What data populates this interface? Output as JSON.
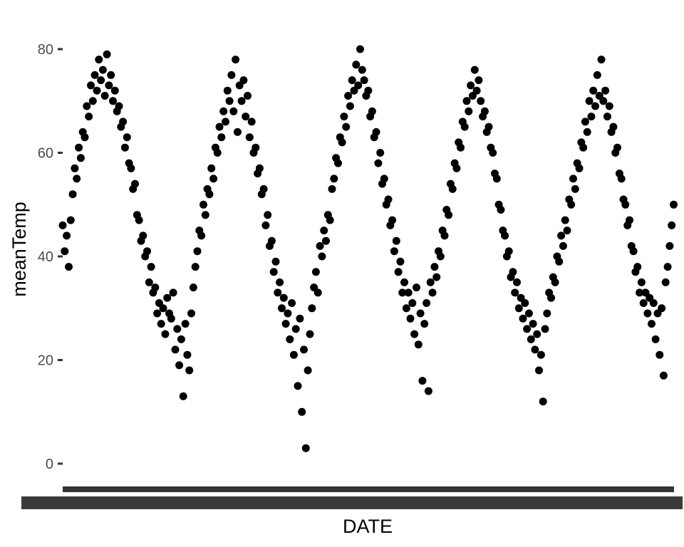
{
  "chart_data": {
    "type": "scatter",
    "title": "",
    "xlabel": "DATE",
    "ylabel": "meanTemp",
    "ylim": [
      -4,
      86
    ],
    "y_ticks": [
      0,
      20,
      40,
      60,
      80
    ],
    "x_tick_labels": "overplotted (illegible date labels)",
    "grid": false,
    "point_color": "#000000",
    "x_range_days": [
      0,
      1825
    ],
    "series": [
      {
        "points": [
          [
            0,
            46
          ],
          [
            6,
            41
          ],
          [
            12,
            44
          ],
          [
            18,
            38
          ],
          [
            24,
            47
          ],
          [
            30,
            52
          ],
          [
            36,
            57
          ],
          [
            42,
            55
          ],
          [
            48,
            61
          ],
          [
            54,
            59
          ],
          [
            60,
            64
          ],
          [
            66,
            63
          ],
          [
            72,
            69
          ],
          [
            78,
            67
          ],
          [
            84,
            73
          ],
          [
            90,
            70
          ],
          [
            96,
            75
          ],
          [
            102,
            72
          ],
          [
            108,
            78
          ],
          [
            114,
            74
          ],
          [
            120,
            76
          ],
          [
            126,
            71
          ],
          [
            132,
            79
          ],
          [
            138,
            73
          ],
          [
            144,
            75
          ],
          [
            150,
            70
          ],
          [
            156,
            72
          ],
          [
            162,
            68
          ],
          [
            168,
            69
          ],
          [
            174,
            65
          ],
          [
            180,
            66
          ],
          [
            186,
            61
          ],
          [
            192,
            63
          ],
          [
            198,
            58
          ],
          [
            204,
            57
          ],
          [
            210,
            53
          ],
          [
            216,
            54
          ],
          [
            222,
            48
          ],
          [
            228,
            47
          ],
          [
            234,
            43
          ],
          [
            240,
            44
          ],
          [
            246,
            40
          ],
          [
            252,
            41
          ],
          [
            258,
            35
          ],
          [
            264,
            38
          ],
          [
            270,
            33
          ],
          [
            276,
            34
          ],
          [
            282,
            29
          ],
          [
            288,
            31
          ],
          [
            294,
            27
          ],
          [
            300,
            30
          ],
          [
            306,
            25
          ],
          [
            312,
            32
          ],
          [
            318,
            29
          ],
          [
            324,
            28
          ],
          [
            330,
            33
          ],
          [
            336,
            22
          ],
          [
            342,
            26
          ],
          [
            348,
            19
          ],
          [
            354,
            24
          ],
          [
            360,
            13
          ],
          [
            366,
            27
          ],
          [
            372,
            21
          ],
          [
            378,
            18
          ],
          [
            384,
            29
          ],
          [
            390,
            34
          ],
          [
            396,
            38
          ],
          [
            402,
            41
          ],
          [
            408,
            45
          ],
          [
            414,
            44
          ],
          [
            420,
            50
          ],
          [
            426,
            48
          ],
          [
            432,
            53
          ],
          [
            438,
            52
          ],
          [
            444,
            57
          ],
          [
            450,
            55
          ],
          [
            456,
            61
          ],
          [
            462,
            60
          ],
          [
            468,
            65
          ],
          [
            474,
            63
          ],
          [
            480,
            68
          ],
          [
            486,
            66
          ],
          [
            492,
            72
          ],
          [
            498,
            70
          ],
          [
            504,
            75
          ],
          [
            510,
            68
          ],
          [
            516,
            78
          ],
          [
            522,
            64
          ],
          [
            528,
            73
          ],
          [
            534,
            70
          ],
          [
            540,
            74
          ],
          [
            546,
            67
          ],
          [
            552,
            71
          ],
          [
            558,
            63
          ],
          [
            564,
            66
          ],
          [
            570,
            60
          ],
          [
            576,
            61
          ],
          [
            582,
            56
          ],
          [
            588,
            57
          ],
          [
            594,
            52
          ],
          [
            600,
            53
          ],
          [
            606,
            46
          ],
          [
            612,
            48
          ],
          [
            618,
            42
          ],
          [
            624,
            43
          ],
          [
            630,
            37
          ],
          [
            636,
            39
          ],
          [
            642,
            33
          ],
          [
            648,
            35
          ],
          [
            654,
            30
          ],
          [
            660,
            32
          ],
          [
            666,
            27
          ],
          [
            672,
            29
          ],
          [
            678,
            24
          ],
          [
            684,
            31
          ],
          [
            690,
            21
          ],
          [
            696,
            26
          ],
          [
            702,
            15
          ],
          [
            708,
            28
          ],
          [
            714,
            10
          ],
          [
            720,
            22
          ],
          [
            726,
            3
          ],
          [
            732,
            18
          ],
          [
            738,
            25
          ],
          [
            744,
            30
          ],
          [
            750,
            34
          ],
          [
            756,
            37
          ],
          [
            762,
            33
          ],
          [
            768,
            42
          ],
          [
            774,
            40
          ],
          [
            780,
            45
          ],
          [
            786,
            43
          ],
          [
            792,
            48
          ],
          [
            798,
            47
          ],
          [
            804,
            53
          ],
          [
            810,
            55
          ],
          [
            816,
            59
          ],
          [
            822,
            58
          ],
          [
            828,
            63
          ],
          [
            834,
            62
          ],
          [
            840,
            67
          ],
          [
            846,
            65
          ],
          [
            852,
            71
          ],
          [
            858,
            69
          ],
          [
            864,
            74
          ],
          [
            870,
            72
          ],
          [
            876,
            77
          ],
          [
            882,
            73
          ],
          [
            888,
            80
          ],
          [
            894,
            76
          ],
          [
            900,
            74
          ],
          [
            906,
            71
          ],
          [
            912,
            72
          ],
          [
            918,
            67
          ],
          [
            924,
            68
          ],
          [
            930,
            63
          ],
          [
            936,
            64
          ],
          [
            942,
            58
          ],
          [
            948,
            60
          ],
          [
            954,
            54
          ],
          [
            960,
            55
          ],
          [
            966,
            50
          ],
          [
            972,
            51
          ],
          [
            978,
            46
          ],
          [
            984,
            47
          ],
          [
            990,
            41
          ],
          [
            996,
            43
          ],
          [
            1002,
            37
          ],
          [
            1008,
            39
          ],
          [
            1014,
            33
          ],
          [
            1020,
            35
          ],
          [
            1026,
            30
          ],
          [
            1032,
            33
          ],
          [
            1038,
            28
          ],
          [
            1044,
            31
          ],
          [
            1050,
            25
          ],
          [
            1056,
            34
          ],
          [
            1062,
            23
          ],
          [
            1068,
            29
          ],
          [
            1074,
            16
          ],
          [
            1080,
            27
          ],
          [
            1086,
            31
          ],
          [
            1092,
            14
          ],
          [
            1098,
            35
          ],
          [
            1104,
            33
          ],
          [
            1110,
            38
          ],
          [
            1116,
            36
          ],
          [
            1122,
            41
          ],
          [
            1128,
            40
          ],
          [
            1134,
            45
          ],
          [
            1140,
            44
          ],
          [
            1146,
            49
          ],
          [
            1152,
            48
          ],
          [
            1158,
            54
          ],
          [
            1164,
            53
          ],
          [
            1170,
            58
          ],
          [
            1176,
            57
          ],
          [
            1182,
            62
          ],
          [
            1188,
            61
          ],
          [
            1194,
            66
          ],
          [
            1200,
            65
          ],
          [
            1206,
            70
          ],
          [
            1212,
            68
          ],
          [
            1218,
            73
          ],
          [
            1224,
            71
          ],
          [
            1230,
            76
          ],
          [
            1236,
            72
          ],
          [
            1242,
            74
          ],
          [
            1248,
            70
          ],
          [
            1254,
            67
          ],
          [
            1260,
            68
          ],
          [
            1266,
            64
          ],
          [
            1272,
            65
          ],
          [
            1278,
            61
          ],
          [
            1284,
            60
          ],
          [
            1290,
            56
          ],
          [
            1296,
            55
          ],
          [
            1302,
            50
          ],
          [
            1308,
            49
          ],
          [
            1314,
            45
          ],
          [
            1320,
            44
          ],
          [
            1326,
            40
          ],
          [
            1332,
            41
          ],
          [
            1338,
            36
          ],
          [
            1344,
            37
          ],
          [
            1350,
            33
          ],
          [
            1356,
            35
          ],
          [
            1362,
            30
          ],
          [
            1368,
            32
          ],
          [
            1374,
            28
          ],
          [
            1380,
            31
          ],
          [
            1386,
            26
          ],
          [
            1392,
            29
          ],
          [
            1398,
            24
          ],
          [
            1404,
            27
          ],
          [
            1410,
            22
          ],
          [
            1416,
            25
          ],
          [
            1422,
            18
          ],
          [
            1428,
            21
          ],
          [
            1434,
            12
          ],
          [
            1440,
            26
          ],
          [
            1446,
            29
          ],
          [
            1452,
            33
          ],
          [
            1458,
            32
          ],
          [
            1464,
            36
          ],
          [
            1470,
            35
          ],
          [
            1476,
            40
          ],
          [
            1482,
            39
          ],
          [
            1488,
            44
          ],
          [
            1494,
            42
          ],
          [
            1500,
            47
          ],
          [
            1506,
            45
          ],
          [
            1512,
            51
          ],
          [
            1518,
            50
          ],
          [
            1524,
            55
          ],
          [
            1530,
            53
          ],
          [
            1536,
            58
          ],
          [
            1542,
            57
          ],
          [
            1548,
            62
          ],
          [
            1554,
            61
          ],
          [
            1560,
            66
          ],
          [
            1566,
            64
          ],
          [
            1572,
            70
          ],
          [
            1578,
            67
          ],
          [
            1584,
            72
          ],
          [
            1590,
            69
          ],
          [
            1596,
            75
          ],
          [
            1602,
            71
          ],
          [
            1608,
            78
          ],
          [
            1614,
            70
          ],
          [
            1620,
            72
          ],
          [
            1626,
            67
          ],
          [
            1632,
            69
          ],
          [
            1638,
            64
          ],
          [
            1644,
            65
          ],
          [
            1650,
            60
          ],
          [
            1656,
            61
          ],
          [
            1662,
            56
          ],
          [
            1668,
            55
          ],
          [
            1674,
            51
          ],
          [
            1680,
            50
          ],
          [
            1686,
            46
          ],
          [
            1692,
            47
          ],
          [
            1698,
            42
          ],
          [
            1704,
            41
          ],
          [
            1710,
            37
          ],
          [
            1716,
            38
          ],
          [
            1722,
            33
          ],
          [
            1728,
            35
          ],
          [
            1734,
            31
          ],
          [
            1740,
            33
          ],
          [
            1746,
            29
          ],
          [
            1752,
            32
          ],
          [
            1758,
            27
          ],
          [
            1764,
            31
          ],
          [
            1770,
            24
          ],
          [
            1776,
            29
          ],
          [
            1782,
            21
          ],
          [
            1788,
            30
          ],
          [
            1794,
            17
          ],
          [
            1800,
            35
          ],
          [
            1806,
            38
          ],
          [
            1812,
            42
          ],
          [
            1818,
            46
          ],
          [
            1824,
            50
          ]
        ]
      }
    ]
  }
}
